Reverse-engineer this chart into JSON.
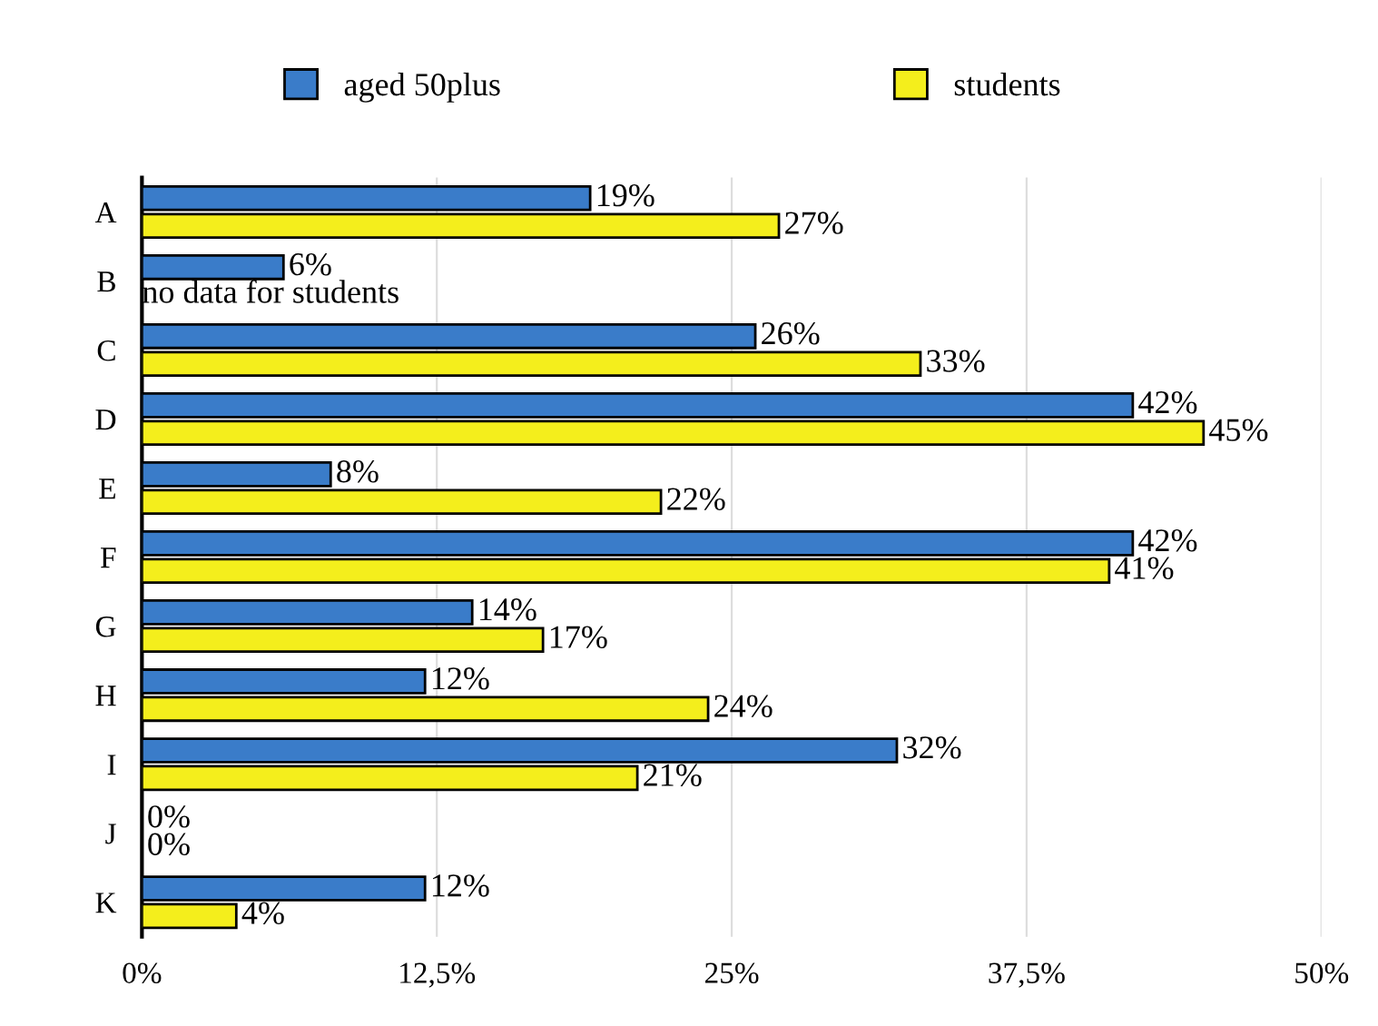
{
  "chart_data": {
    "type": "bar",
    "orientation": "horizontal",
    "categories": [
      "A",
      "B",
      "C",
      "D",
      "E",
      "F",
      "G",
      "H",
      "I",
      "J",
      "K"
    ],
    "series": [
      {
        "name": "aged 50plus",
        "color": "#3a7cc9",
        "values": [
          19,
          6,
          26,
          42,
          8,
          42,
          14,
          12,
          32,
          0,
          12
        ],
        "value_labels": [
          "19%",
          "6%",
          "26%",
          "42%",
          "8%",
          "42%",
          "14%",
          "12%",
          "32%",
          "0%",
          "12%"
        ]
      },
      {
        "name": "students",
        "color": "#f4ee1c",
        "values": [
          27,
          null,
          33,
          45,
          22,
          41,
          17,
          24,
          21,
          0,
          4
        ],
        "value_labels": [
          "27%",
          null,
          "33%",
          "45%",
          "22%",
          "41%",
          "17%",
          "24%",
          "21%",
          "0%",
          "4%"
        ]
      }
    ],
    "xlim": [
      0,
      50
    ],
    "xticks": [
      {
        "value": 0,
        "label": "0%"
      },
      {
        "value": 12.5,
        "label": "12,5%"
      },
      {
        "value": 25,
        "label": "25%"
      },
      {
        "value": 37.5,
        "label": "37,5%"
      },
      {
        "value": 50,
        "label": "50%"
      }
    ],
    "annotations": [
      {
        "text": "no data for students",
        "x": 0,
        "y": "B"
      }
    ],
    "grid": "x",
    "legend": "top"
  }
}
